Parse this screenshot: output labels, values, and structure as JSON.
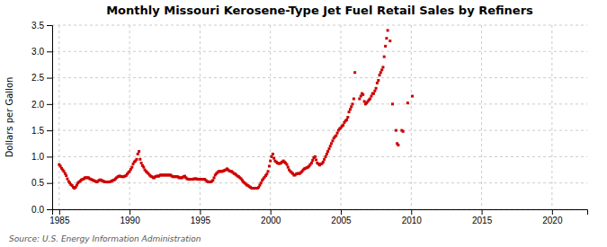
{
  "chart_data": {
    "type": "scatter",
    "title": "Monthly Missouri Kerosene-Type Jet Fuel Retail Sales by Refiners",
    "ylabel": "Dollars per Gallon",
    "source": "Source: U.S. Energy Information Administration",
    "color": "#cc0000",
    "marker": "square",
    "grid": true,
    "xlim": [
      1984.5,
      2022.5
    ],
    "ylim": [
      0.0,
      3.5
    ],
    "xticks": [
      1985,
      1990,
      1995,
      2000,
      2005,
      2010,
      2015,
      2020
    ],
    "yticks": [
      {
        "value": 0.0,
        "label": "0.0"
      },
      {
        "value": 0.5,
        "label": "0.5"
      },
      {
        "value": 1.0,
        "label": "1.0"
      },
      {
        "value": 1.5,
        "label": "1.5"
      },
      {
        "value": 2.0,
        "label": "2.0"
      },
      {
        "value": 2.5,
        "label": "2.5"
      },
      {
        "value": 3.0,
        "label": "3.0"
      },
      {
        "value": 3.5,
        "label": "3.5"
      }
    ],
    "x": [
      1985.0,
      1985.08,
      1985.17,
      1985.25,
      1985.33,
      1985.42,
      1985.5,
      1985.58,
      1985.67,
      1985.75,
      1985.83,
      1985.92,
      1986.0,
      1986.08,
      1986.17,
      1986.25,
      1986.33,
      1986.42,
      1986.5,
      1986.58,
      1986.67,
      1986.75,
      1986.83,
      1986.92,
      1987.0,
      1987.08,
      1987.17,
      1987.25,
      1987.33,
      1987.42,
      1987.5,
      1987.58,
      1987.67,
      1987.75,
      1987.83,
      1987.92,
      1988.0,
      1988.08,
      1988.17,
      1988.25,
      1988.33,
      1988.42,
      1988.5,
      1988.58,
      1988.67,
      1988.75,
      1988.83,
      1988.92,
      1989.0,
      1989.08,
      1989.17,
      1989.25,
      1989.33,
      1989.42,
      1989.5,
      1989.58,
      1989.67,
      1989.75,
      1989.83,
      1989.92,
      1990.0,
      1990.08,
      1990.17,
      1990.25,
      1990.33,
      1990.42,
      1990.5,
      1990.58,
      1990.67,
      1990.75,
      1990.83,
      1990.92,
      1991.0,
      1991.08,
      1991.17,
      1991.25,
      1991.33,
      1991.42,
      1991.5,
      1991.58,
      1991.67,
      1991.75,
      1991.83,
      1991.92,
      1992.0,
      1992.08,
      1992.17,
      1992.25,
      1992.33,
      1992.42,
      1992.5,
      1992.58,
      1992.67,
      1992.75,
      1992.83,
      1992.92,
      1993.0,
      1993.08,
      1993.17,
      1993.25,
      1993.33,
      1993.42,
      1993.5,
      1993.58,
      1993.67,
      1993.75,
      1993.83,
      1993.92,
      1994.0,
      1994.08,
      1994.17,
      1994.25,
      1994.33,
      1994.42,
      1994.5,
      1994.58,
      1994.67,
      1994.75,
      1994.83,
      1994.92,
      1995.0,
      1995.08,
      1995.17,
      1995.25,
      1995.33,
      1995.42,
      1995.5,
      1995.58,
      1995.67,
      1995.75,
      1995.83,
      1995.92,
      1996.0,
      1996.08,
      1996.17,
      1996.25,
      1996.33,
      1996.42,
      1996.5,
      1996.58,
      1996.67,
      1996.75,
      1996.83,
      1996.92,
      1997.0,
      1997.08,
      1997.17,
      1997.25,
      1997.33,
      1997.42,
      1997.5,
      1997.58,
      1997.67,
      1997.75,
      1997.83,
      1997.92,
      1998.0,
      1998.08,
      1998.17,
      1998.25,
      1998.33,
      1998.42,
      1998.5,
      1998.58,
      1998.67,
      1998.75,
      1998.83,
      1998.92,
      1999.0,
      1999.08,
      1999.17,
      1999.25,
      1999.33,
      1999.42,
      1999.5,
      1999.58,
      1999.67,
      1999.75,
      1999.83,
      1999.92,
      2000.0,
      2000.08,
      2000.17,
      2000.25,
      2000.33,
      2000.42,
      2000.5,
      2000.58,
      2000.67,
      2000.75,
      2000.83,
      2000.92,
      2001.0,
      2001.08,
      2001.17,
      2001.25,
      2001.33,
      2001.42,
      2001.5,
      2001.58,
      2001.67,
      2001.75,
      2001.83,
      2001.92,
      2002.0,
      2002.08,
      2002.17,
      2002.25,
      2002.33,
      2002.42,
      2002.5,
      2002.58,
      2002.67,
      2002.75,
      2002.83,
      2002.92,
      2003.0,
      2003.08,
      2003.17,
      2003.25,
      2003.33,
      2003.42,
      2003.5,
      2003.58,
      2003.67,
      2003.75,
      2003.83,
      2003.92,
      2004.0,
      2004.08,
      2004.17,
      2004.25,
      2004.33,
      2004.42,
      2004.5,
      2004.58,
      2004.67,
      2004.75,
      2004.83,
      2004.92,
      2005.0,
      2005.08,
      2005.17,
      2005.25,
      2005.33,
      2005.42,
      2005.5,
      2005.58,
      2005.67,
      2005.75,
      2005.83,
      2005.92,
      2006.0,
      2006.33,
      2006.42,
      2006.5,
      2006.58,
      2006.67,
      2006.75,
      2006.83,
      2006.92,
      2007.0,
      2007.08,
      2007.17,
      2007.25,
      2007.33,
      2007.42,
      2007.5,
      2007.58,
      2007.67,
      2007.75,
      2007.83,
      2007.92,
      2008.0,
      2008.08,
      2008.17,
      2008.25,
      2008.33,
      2008.5,
      2008.67,
      2008.92,
      2009.0,
      2009.08,
      2009.33,
      2009.42,
      2009.75,
      2010.08
    ],
    "values": [
      0.85,
      0.82,
      0.78,
      0.75,
      0.72,
      0.68,
      0.64,
      0.58,
      0.53,
      0.5,
      0.47,
      0.45,
      0.42,
      0.4,
      0.42,
      0.46,
      0.5,
      0.52,
      0.54,
      0.56,
      0.57,
      0.58,
      0.6,
      0.6,
      0.6,
      0.6,
      0.58,
      0.57,
      0.56,
      0.55,
      0.54,
      0.53,
      0.52,
      0.53,
      0.55,
      0.56,
      0.55,
      0.54,
      0.53,
      0.52,
      0.52,
      0.52,
      0.52,
      0.52,
      0.53,
      0.54,
      0.55,
      0.56,
      0.58,
      0.6,
      0.62,
      0.63,
      0.63,
      0.62,
      0.62,
      0.62,
      0.63,
      0.64,
      0.67,
      0.7,
      0.72,
      0.76,
      0.8,
      0.86,
      0.9,
      0.92,
      0.95,
      1.05,
      1.1,
      0.95,
      0.88,
      0.83,
      0.8,
      0.75,
      0.72,
      0.7,
      0.68,
      0.65,
      0.63,
      0.62,
      0.6,
      0.6,
      0.62,
      0.63,
      0.63,
      0.63,
      0.65,
      0.65,
      0.65,
      0.65,
      0.65,
      0.65,
      0.65,
      0.65,
      0.65,
      0.65,
      0.63,
      0.62,
      0.62,
      0.62,
      0.62,
      0.62,
      0.6,
      0.6,
      0.6,
      0.6,
      0.62,
      0.63,
      0.6,
      0.58,
      0.57,
      0.57,
      0.57,
      0.57,
      0.57,
      0.58,
      0.58,
      0.58,
      0.57,
      0.57,
      0.57,
      0.57,
      0.57,
      0.57,
      0.57,
      0.55,
      0.53,
      0.52,
      0.52,
      0.52,
      0.53,
      0.55,
      0.6,
      0.65,
      0.68,
      0.7,
      0.72,
      0.72,
      0.72,
      0.72,
      0.73,
      0.74,
      0.75,
      0.77,
      0.75,
      0.73,
      0.72,
      0.72,
      0.7,
      0.68,
      0.67,
      0.65,
      0.63,
      0.62,
      0.6,
      0.58,
      0.55,
      0.52,
      0.5,
      0.48,
      0.46,
      0.45,
      0.43,
      0.42,
      0.4,
      0.4,
      0.4,
      0.4,
      0.4,
      0.4,
      0.42,
      0.46,
      0.5,
      0.55,
      0.58,
      0.61,
      0.64,
      0.67,
      0.72,
      0.82,
      0.92,
      1.0,
      1.05,
      0.97,
      0.92,
      0.9,
      0.88,
      0.87,
      0.87,
      0.88,
      0.9,
      0.92,
      0.9,
      0.88,
      0.85,
      0.8,
      0.75,
      0.72,
      0.7,
      0.68,
      0.65,
      0.65,
      0.67,
      0.68,
      0.68,
      0.68,
      0.7,
      0.72,
      0.75,
      0.77,
      0.78,
      0.79,
      0.8,
      0.82,
      0.85,
      0.88,
      0.93,
      0.98,
      1.0,
      0.94,
      0.88,
      0.86,
      0.84,
      0.86,
      0.87,
      0.9,
      0.95,
      1.0,
      1.05,
      1.1,
      1.15,
      1.2,
      1.25,
      1.3,
      1.35,
      1.38,
      1.4,
      1.45,
      1.5,
      1.53,
      1.55,
      1.58,
      1.6,
      1.65,
      1.68,
      1.7,
      1.75,
      1.85,
      1.9,
      1.95,
      2.0,
      2.1,
      2.6,
      2.1,
      2.15,
      2.2,
      2.18,
      2.05,
      2.0,
      2.02,
      2.05,
      2.08,
      2.1,
      2.15,
      2.2,
      2.2,
      2.25,
      2.3,
      2.4,
      2.45,
      2.55,
      2.6,
      2.65,
      2.7,
      2.9,
      3.1,
      3.25,
      3.4,
      3.2,
      2.0,
      1.5,
      1.25,
      1.22,
      1.5,
      1.48,
      2.02,
      2.15
    ]
  }
}
